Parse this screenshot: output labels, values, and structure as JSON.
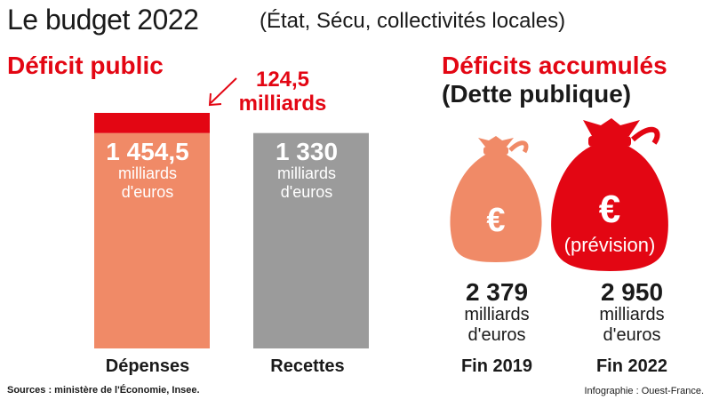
{
  "header": {
    "title": "Le budget 2022",
    "subtitle": "(État, Sécu, collectivités locales)"
  },
  "left_section": {
    "heading": "Déficit public",
    "deficit_value": "124,5",
    "deficit_unit": "milliards"
  },
  "right_section": {
    "heading_line1": "Déficits accumulés",
    "heading_line2": "(Dette publique)",
    "bag_symbol": "€",
    "bag_note": "(prévision)"
  },
  "footer": {
    "sources": "Sources : ministère de l'Économie, Insee.",
    "credit": "Infographie : Ouest-France."
  },
  "colors": {
    "salmon": "#f08a67",
    "red": "#e30613",
    "grey": "#9b9b9b",
    "text": "#1a1a1a",
    "white": "#ffffff"
  },
  "chart_data": [
    {
      "type": "bar",
      "categories": [
        "Dépenses",
        "Recettes"
      ],
      "values": [
        1454.5,
        1330
      ],
      "stacked_deficit": {
        "category": "Dépenses",
        "value": 124.5
      },
      "value_labels": [
        "1 454,5",
        "1 330"
      ],
      "unit_label": "milliards d'euros",
      "unit_line1": "milliards",
      "unit_line2": "d'euros",
      "title": "Déficit public",
      "xlabel": "",
      "ylabel": "",
      "ylim": [
        0,
        1454.5
      ]
    },
    {
      "type": "bar",
      "categories": [
        "Fin 2019",
        "Fin 2022"
      ],
      "values": [
        2379,
        2950
      ],
      "value_labels": [
        "2 379",
        "2 950"
      ],
      "unit_label": "milliards d'euros",
      "unit_line1": "milliards",
      "unit_line2": "d'euros",
      "title": "Déficits accumulés (Dette publique)",
      "xlabel": "",
      "ylabel": ""
    }
  ]
}
